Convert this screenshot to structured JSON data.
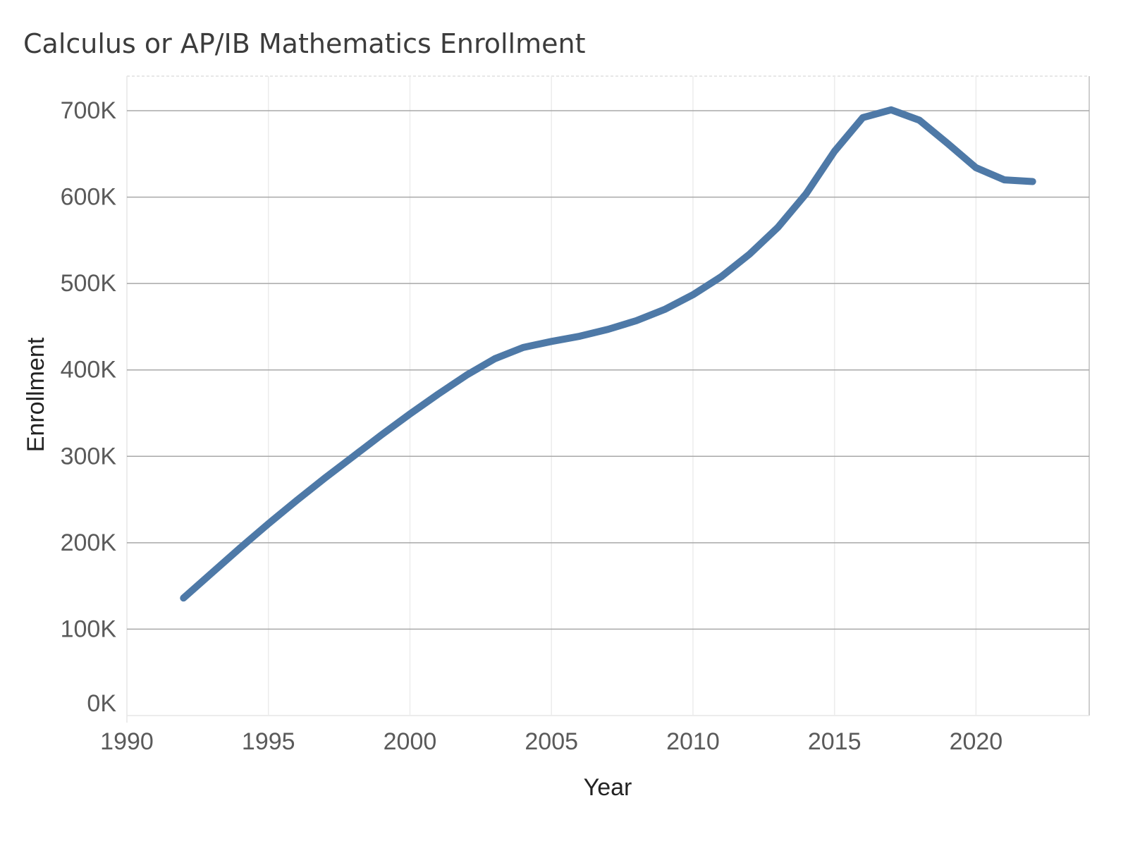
{
  "chart_data": {
    "type": "line",
    "title": "Calculus or AP/IB Mathematics Enrollment",
    "xlabel": "Year",
    "ylabel": "Enrollment",
    "xlim": [
      1990,
      2024
    ],
    "ylim": [
      0,
      740000
    ],
    "x_ticks": [
      1990,
      1995,
      2000,
      2005,
      2010,
      2015,
      2020
    ],
    "x_tick_labels": [
      "1990",
      "1995",
      "2000",
      "2005",
      "2010",
      "2015",
      "2020"
    ],
    "y_ticks": [
      0,
      100000,
      200000,
      300000,
      400000,
      500000,
      600000,
      700000
    ],
    "y_tick_labels": [
      "0K",
      "100K",
      "200K",
      "300K",
      "400K",
      "500K",
      "600K",
      "700K"
    ],
    "grid": true,
    "legend": "none",
    "series": [
      {
        "color": "#4e79a7",
        "x": [
          1992,
          1993,
          1994,
          1995,
          1996,
          1997,
          1998,
          1999,
          2000,
          2001,
          2002,
          2003,
          2004,
          2005,
          2006,
          2007,
          2008,
          2009,
          2010,
          2011,
          2012,
          2013,
          2014,
          2015,
          2016,
          2017,
          2018,
          2019,
          2020,
          2021,
          2022
        ],
        "y": [
          136000,
          165000,
          194000,
          222000,
          249000,
          275000,
          300000,
          325000,
          349000,
          372000,
          394000,
          413000,
          426000,
          433000,
          439000,
          447000,
          457000,
          470000,
          487000,
          508000,
          534000,
          565000,
          604000,
          653000,
          692000,
          701000,
          689000,
          662000,
          634000,
          620000,
          618000
        ]
      }
    ]
  }
}
